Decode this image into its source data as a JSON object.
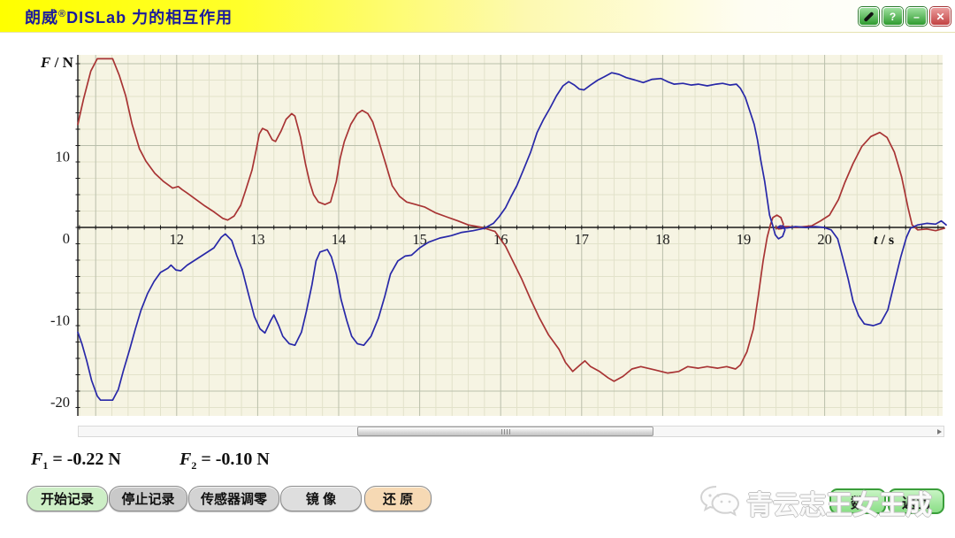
{
  "window": {
    "title_brand": "朗威",
    "title_reg": "®",
    "title_product": "DISLab",
    "title_subject": " 力的相互作用",
    "controls": {
      "help": "?",
      "minimize": "–",
      "close": "✕"
    }
  },
  "colors": {
    "title_text": "#1c1c9c",
    "plot_bg": "#f6f4e3",
    "grid_minor": "#e2e2ca",
    "grid_major": "#b9bfab",
    "axis": "#1a1a1a",
    "f1_red": "#a83434",
    "f2_blue": "#2828a8",
    "btn_green": "#cdeec6",
    "btn_peach": "#f6d9b4",
    "corner_green": "#8ade86"
  },
  "chart_data": {
    "type": "line",
    "xlabel": "t / s",
    "ylabel": "F / N",
    "x_ticks": [
      12,
      13,
      14,
      15,
      16,
      17,
      18,
      19,
      20
    ],
    "y_ticks": [
      10,
      0,
      -10,
      -20
    ],
    "xlim": [
      10.78,
      21.52
    ],
    "ylim": [
      -23,
      21.2
    ],
    "x_minor_step": 0.2,
    "y_minor_step": 2,
    "grid": true,
    "legend": "none",
    "series": [
      {
        "name": "F1",
        "color": "#a83434",
        "points": [
          [
            10.78,
            12.6
          ],
          [
            10.85,
            15.7
          ],
          [
            10.94,
            19.1
          ],
          [
            11.02,
            20.6
          ],
          [
            11.21,
            20.6
          ],
          [
            11.29,
            18.6
          ],
          [
            11.37,
            16.1
          ],
          [
            11.45,
            12.6
          ],
          [
            11.54,
            9.6
          ],
          [
            11.62,
            8.1
          ],
          [
            11.73,
            6.6
          ],
          [
            11.84,
            5.6
          ],
          [
            11.95,
            4.8
          ],
          [
            12.02,
            5.0
          ],
          [
            12.07,
            4.6
          ],
          [
            12.13,
            4.2
          ],
          [
            12.24,
            3.4
          ],
          [
            12.35,
            2.6
          ],
          [
            12.46,
            1.9
          ],
          [
            12.57,
            1.1
          ],
          [
            12.63,
            0.9
          ],
          [
            12.71,
            1.4
          ],
          [
            12.79,
            2.7
          ],
          [
            12.85,
            4.5
          ],
          [
            12.93,
            7.0
          ],
          [
            12.98,
            9.4
          ],
          [
            13.02,
            11.4
          ],
          [
            13.06,
            12.1
          ],
          [
            13.12,
            11.8
          ],
          [
            13.18,
            10.7
          ],
          [
            13.22,
            10.5
          ],
          [
            13.29,
            11.8
          ],
          [
            13.35,
            13.2
          ],
          [
            13.42,
            13.9
          ],
          [
            13.46,
            13.6
          ],
          [
            13.53,
            11.0
          ],
          [
            13.59,
            7.8
          ],
          [
            13.64,
            5.6
          ],
          [
            13.69,
            4.0
          ],
          [
            13.75,
            3.1
          ],
          [
            13.83,
            2.8
          ],
          [
            13.9,
            3.1
          ],
          [
            13.97,
            5.6
          ],
          [
            14.02,
            8.5
          ],
          [
            14.07,
            10.5
          ],
          [
            14.15,
            12.6
          ],
          [
            14.23,
            13.9
          ],
          [
            14.29,
            14.3
          ],
          [
            14.36,
            13.9
          ],
          [
            14.42,
            12.9
          ],
          [
            14.49,
            10.7
          ],
          [
            14.58,
            7.8
          ],
          [
            14.66,
            5.1
          ],
          [
            14.75,
            3.8
          ],
          [
            14.84,
            3.1
          ],
          [
            14.95,
            2.8
          ],
          [
            15.06,
            2.5
          ],
          [
            15.19,
            1.8
          ],
          [
            15.33,
            1.3
          ],
          [
            15.47,
            0.8
          ],
          [
            15.6,
            0.3
          ],
          [
            15.77,
            0.0
          ],
          [
            15.93,
            -0.5
          ],
          [
            16.06,
            -2.3
          ],
          [
            16.15,
            -4.1
          ],
          [
            16.26,
            -6.3
          ],
          [
            16.37,
            -8.8
          ],
          [
            16.48,
            -11.1
          ],
          [
            16.59,
            -13.1
          ],
          [
            16.72,
            -14.9
          ],
          [
            16.8,
            -16.5
          ],
          [
            16.89,
            -17.6
          ],
          [
            16.98,
            -16.8
          ],
          [
            17.04,
            -16.3
          ],
          [
            17.11,
            -17.0
          ],
          [
            17.22,
            -17.6
          ],
          [
            17.33,
            -18.4
          ],
          [
            17.4,
            -18.8
          ],
          [
            17.51,
            -18.2
          ],
          [
            17.62,
            -17.3
          ],
          [
            17.73,
            -17.0
          ],
          [
            17.9,
            -17.4
          ],
          [
            18.06,
            -17.8
          ],
          [
            18.2,
            -17.6
          ],
          [
            18.31,
            -17.0
          ],
          [
            18.44,
            -17.2
          ],
          [
            18.55,
            -17.0
          ],
          [
            18.68,
            -17.2
          ],
          [
            18.79,
            -17.0
          ],
          [
            18.9,
            -17.3
          ],
          [
            18.96,
            -16.8
          ],
          [
            19.04,
            -15.2
          ],
          [
            19.12,
            -12.4
          ],
          [
            19.18,
            -8.4
          ],
          [
            19.24,
            -4.1
          ],
          [
            19.29,
            -1.2
          ],
          [
            19.33,
            0.3
          ],
          [
            19.36,
            1.2
          ],
          [
            19.41,
            1.5
          ],
          [
            19.46,
            1.2
          ],
          [
            19.49,
            0.4
          ],
          [
            19.47,
            -0.15
          ],
          [
            19.43,
            -0.2
          ],
          [
            19.4,
            0.0
          ],
          [
            19.45,
            0.1
          ],
          [
            19.55,
            0.1
          ],
          [
            19.65,
            0.0
          ],
          [
            19.75,
            0.1
          ],
          [
            19.84,
            0.2
          ],
          [
            19.95,
            0.8
          ],
          [
            20.06,
            1.5
          ],
          [
            20.17,
            3.4
          ],
          [
            20.25,
            5.5
          ],
          [
            20.35,
            7.8
          ],
          [
            20.46,
            9.9
          ],
          [
            20.57,
            11.1
          ],
          [
            20.68,
            11.6
          ],
          [
            20.77,
            11.0
          ],
          [
            20.86,
            9.2
          ],
          [
            20.95,
            6.2
          ],
          [
            21.03,
            2.4
          ],
          [
            21.08,
            0.3
          ],
          [
            21.15,
            -0.3
          ],
          [
            21.26,
            -0.2
          ],
          [
            21.37,
            -0.4
          ],
          [
            21.48,
            -0.1
          ]
        ]
      },
      {
        "name": "F2",
        "color": "#2828a8",
        "points": [
          [
            10.78,
            -12.8
          ],
          [
            10.83,
            -14.2
          ],
          [
            10.89,
            -16.3
          ],
          [
            10.95,
            -18.7
          ],
          [
            11.02,
            -20.6
          ],
          [
            11.06,
            -21.1
          ],
          [
            11.21,
            -21.1
          ],
          [
            11.28,
            -19.8
          ],
          [
            11.34,
            -17.6
          ],
          [
            11.42,
            -14.9
          ],
          [
            11.49,
            -12.4
          ],
          [
            11.56,
            -10.1
          ],
          [
            11.64,
            -8.1
          ],
          [
            11.72,
            -6.6
          ],
          [
            11.8,
            -5.5
          ],
          [
            11.89,
            -5.0
          ],
          [
            11.93,
            -4.6
          ],
          [
            11.99,
            -5.2
          ],
          [
            12.05,
            -5.3
          ],
          [
            12.13,
            -4.6
          ],
          [
            12.24,
            -3.9
          ],
          [
            12.35,
            -3.2
          ],
          [
            12.46,
            -2.5
          ],
          [
            12.55,
            -1.2
          ],
          [
            12.6,
            -0.8
          ],
          [
            12.68,
            -1.6
          ],
          [
            12.74,
            -3.4
          ],
          [
            12.81,
            -5.2
          ],
          [
            12.88,
            -7.9
          ],
          [
            12.96,
            -10.9
          ],
          [
            13.03,
            -12.4
          ],
          [
            13.09,
            -12.9
          ],
          [
            13.16,
            -11.4
          ],
          [
            13.2,
            -10.7
          ],
          [
            13.26,
            -12.0
          ],
          [
            13.31,
            -13.3
          ],
          [
            13.39,
            -14.2
          ],
          [
            13.46,
            -14.4
          ],
          [
            13.54,
            -12.8
          ],
          [
            13.6,
            -10.3
          ],
          [
            13.67,
            -7.0
          ],
          [
            13.72,
            -4.1
          ],
          [
            13.77,
            -3.0
          ],
          [
            13.86,
            -2.7
          ],
          [
            13.91,
            -3.6
          ],
          [
            13.97,
            -5.7
          ],
          [
            14.03,
            -8.8
          ],
          [
            14.1,
            -11.4
          ],
          [
            14.16,
            -13.3
          ],
          [
            14.23,
            -14.2
          ],
          [
            14.31,
            -14.4
          ],
          [
            14.4,
            -13.3
          ],
          [
            14.49,
            -11.1
          ],
          [
            14.57,
            -8.4
          ],
          [
            14.64,
            -5.7
          ],
          [
            14.73,
            -4.1
          ],
          [
            14.82,
            -3.5
          ],
          [
            14.9,
            -3.4
          ],
          [
            15.0,
            -2.5
          ],
          [
            15.11,
            -1.8
          ],
          [
            15.25,
            -1.3
          ],
          [
            15.39,
            -1.0
          ],
          [
            15.52,
            -0.6
          ],
          [
            15.66,
            -0.4
          ],
          [
            15.8,
            -0.1
          ],
          [
            15.91,
            0.5
          ],
          [
            15.98,
            1.3
          ],
          [
            16.06,
            2.4
          ],
          [
            16.13,
            3.8
          ],
          [
            16.2,
            5.1
          ],
          [
            16.28,
            7.0
          ],
          [
            16.37,
            9.2
          ],
          [
            16.45,
            11.6
          ],
          [
            16.53,
            13.2
          ],
          [
            16.61,
            14.6
          ],
          [
            16.69,
            16.1
          ],
          [
            16.77,
            17.3
          ],
          [
            16.84,
            17.8
          ],
          [
            16.91,
            17.4
          ],
          [
            16.97,
            16.9
          ],
          [
            17.03,
            16.8
          ],
          [
            17.11,
            17.4
          ],
          [
            17.2,
            18.0
          ],
          [
            17.28,
            18.4
          ],
          [
            17.37,
            18.9
          ],
          [
            17.46,
            18.7
          ],
          [
            17.55,
            18.3
          ],
          [
            17.66,
            18.0
          ],
          [
            17.76,
            17.7
          ],
          [
            17.87,
            18.1
          ],
          [
            17.98,
            18.2
          ],
          [
            18.06,
            17.8
          ],
          [
            18.14,
            17.5
          ],
          [
            18.25,
            17.6
          ],
          [
            18.35,
            17.4
          ],
          [
            18.44,
            17.5
          ],
          [
            18.55,
            17.3
          ],
          [
            18.66,
            17.5
          ],
          [
            18.74,
            17.6
          ],
          [
            18.83,
            17.4
          ],
          [
            18.91,
            17.5
          ],
          [
            18.96,
            17.0
          ],
          [
            19.02,
            15.9
          ],
          [
            19.07,
            14.4
          ],
          [
            19.13,
            12.6
          ],
          [
            19.17,
            10.7
          ],
          [
            19.21,
            8.3
          ],
          [
            19.26,
            5.6
          ],
          [
            19.29,
            3.5
          ],
          [
            19.32,
            1.5
          ],
          [
            19.36,
            0.2
          ],
          [
            19.39,
            -0.9
          ],
          [
            19.43,
            -1.4
          ],
          [
            19.48,
            -1.1
          ],
          [
            19.51,
            -0.3
          ],
          [
            19.49,
            0.15
          ],
          [
            19.45,
            0.2
          ],
          [
            19.42,
            0.0
          ],
          [
            19.47,
            -0.1
          ],
          [
            19.54,
            -0.05
          ],
          [
            19.64,
            0.1
          ],
          [
            19.77,
            0.0
          ],
          [
            19.88,
            0.1
          ],
          [
            19.99,
            0.0
          ],
          [
            20.08,
            -0.3
          ],
          [
            20.16,
            -1.4
          ],
          [
            20.22,
            -3.6
          ],
          [
            20.29,
            -6.3
          ],
          [
            20.35,
            -9.0
          ],
          [
            20.42,
            -10.8
          ],
          [
            20.49,
            -11.8
          ],
          [
            20.6,
            -12.0
          ],
          [
            20.69,
            -11.7
          ],
          [
            20.78,
            -10.1
          ],
          [
            20.86,
            -6.8
          ],
          [
            20.94,
            -3.6
          ],
          [
            21.01,
            -1.2
          ],
          [
            21.06,
            -0.1
          ],
          [
            21.15,
            0.3
          ],
          [
            21.26,
            0.5
          ],
          [
            21.37,
            0.4
          ],
          [
            21.44,
            0.8
          ],
          [
            21.5,
            0.3
          ]
        ]
      }
    ]
  },
  "readouts": {
    "f1": {
      "sym": "F",
      "sub": "1",
      "eq": "=",
      "value": "-0.22",
      "unit": "N"
    },
    "f2": {
      "sym": "F",
      "sub": "2",
      "eq": "=",
      "value": "-0.10",
      "unit": "N"
    }
  },
  "toolbar": {
    "buttons": [
      {
        "label": "开始记录"
      },
      {
        "label": "停止记录"
      },
      {
        "label": "传感器调零"
      },
      {
        "label": "镜 像"
      },
      {
        "label": "还 原"
      }
    ]
  },
  "watermark": {
    "text": "青云志王女王成"
  },
  "corner": {
    "left_label": "数",
    "right_label": "返回"
  }
}
